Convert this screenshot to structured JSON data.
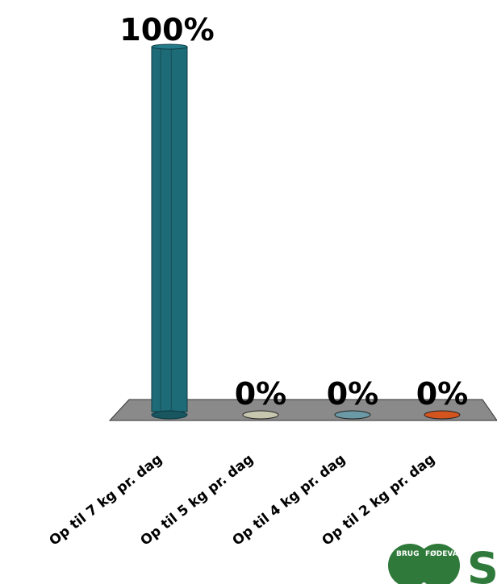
{
  "chart_data": {
    "type": "bar",
    "categories": [
      "Op til 7 kg pr. dag",
      "Op til 5 kg pr. dag",
      "Op til 4 kg pr. dag",
      "Op til 2 kg pr. dag"
    ],
    "values": [
      100,
      0,
      0,
      0
    ],
    "data_labels": [
      "100%",
      "0%",
      "0%",
      "0%"
    ],
    "ylim": [
      0,
      100
    ],
    "colors": [
      "#1e6b78",
      "#c7c7b0",
      "#6a9aa6",
      "#d4541e"
    ],
    "floor_color": "#8a8a8a",
    "grid": false,
    "legend": "none"
  },
  "logo": {
    "text_left": "BRUG",
    "text_right": "FØDEVA",
    "letter": "S",
    "color": "#2f7a3a"
  }
}
